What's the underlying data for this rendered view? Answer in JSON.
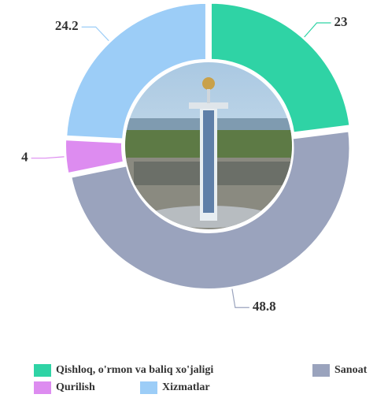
{
  "chart_data": {
    "type": "donut",
    "categories": [
      "Qishloq, o'rmon va baliq xo'jaligi",
      "Sanoat",
      "Qurilish",
      "Xizmatlar"
    ],
    "values": [
      23,
      48.8,
      4,
      24.2
    ],
    "colors": [
      "#2fd3a5",
      "#9aa3bd",
      "#dd8cf0",
      "#9ccdf7"
    ]
  }
}
